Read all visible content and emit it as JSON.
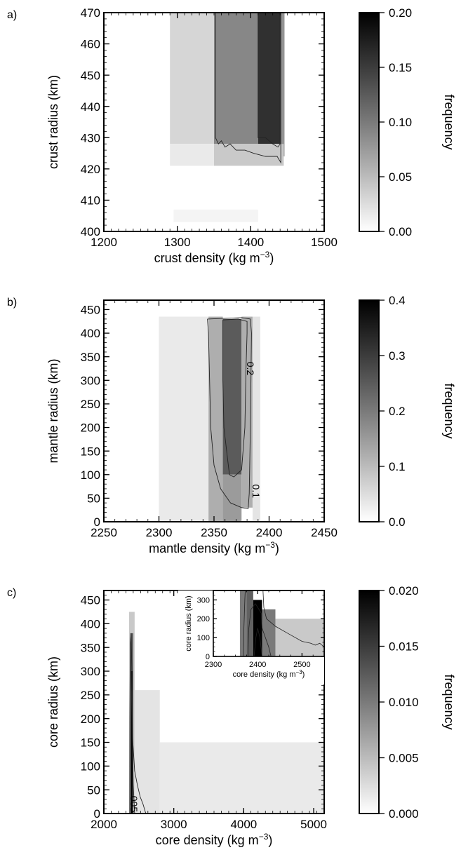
{
  "chart_data": [
    {
      "panel_label": "a)",
      "type": "heatmap",
      "xlabel_main": "crust density (kg m",
      "xlabel_sup": "−3",
      "xlabel_end": ")",
      "ylabel": "crust radius (km)",
      "xlim": [
        1200,
        1500
      ],
      "ylim": [
        400,
        470
      ],
      "x_ticks": [
        "1200",
        "1300",
        "1400",
        "1500"
      ],
      "y_ticks": [
        "400",
        "410",
        "420",
        "430",
        "440",
        "450",
        "460",
        "470"
      ],
      "colorbar": {
        "label": "frequency",
        "range": [
          0.0,
          0.2
        ],
        "ticks": [
          "0.00",
          "0.05",
          "0.10",
          "0.15",
          "0.20"
        ]
      },
      "cells": [
        {
          "x": [
            1290,
            1350
          ],
          "y": [
            428,
            470
          ],
          "value": 0.03
        },
        {
          "x": [
            1350,
            1410
          ],
          "y": [
            428,
            470
          ],
          "value": 0.09
        },
        {
          "x": [
            1410,
            1440
          ],
          "y": [
            428,
            470
          ],
          "value": 0.16
        },
        {
          "x": [
            1440,
            1446
          ],
          "y": [
            424,
            470
          ],
          "value": 0.08
        },
        {
          "x": [
            1290,
            1350
          ],
          "y": [
            421,
            428
          ],
          "value": 0.015
        },
        {
          "x": [
            1350,
            1445
          ],
          "y": [
            421,
            428
          ],
          "value": 0.04
        },
        {
          "x": [
            1295,
            1410
          ],
          "y": [
            403,
            407
          ],
          "value": 0.008
        }
      ],
      "contours": [
        {
          "points": [
            [
              1352,
              470
            ],
            [
              1352,
              430
            ],
            [
              1356,
              428
            ],
            [
              1360,
              429
            ],
            [
              1365,
              427
            ],
            [
              1372,
              428
            ],
            [
              1380,
              426
            ],
            [
              1392,
              426
            ],
            [
              1404,
              425
            ],
            [
              1420,
              424
            ],
            [
              1436,
              424
            ],
            [
              1441,
              422
            ],
            [
              1441,
              470
            ]
          ]
        },
        {
          "points": [
            [
              1410,
              470
            ],
            [
              1410,
              430
            ],
            [
              1420,
              430
            ],
            [
              1430,
              428
            ],
            [
              1437,
              427
            ],
            [
              1440,
              428
            ],
            [
              1440,
              470
            ]
          ]
        }
      ],
      "contour_labels": []
    },
    {
      "panel_label": "b)",
      "type": "heatmap",
      "xlabel_main": "mantle density (kg m",
      "xlabel_sup": "−3",
      "xlabel_end": ")",
      "ylabel": "mantle radius (km)",
      "xlim": [
        2250,
        2450
      ],
      "ylim": [
        0,
        470
      ],
      "x_ticks": [
        "2250",
        "2300",
        "2350",
        "2400",
        "2450"
      ],
      "y_ticks": [
        "0",
        "50",
        "100",
        "150",
        "200",
        "250",
        "300",
        "350",
        "400",
        "450"
      ],
      "colorbar": {
        "label": "frequency",
        "range": [
          0.0,
          0.4
        ],
        "ticks": [
          "0.0",
          "0.1",
          "0.2",
          "0.3",
          "0.4"
        ]
      },
      "cells": [
        {
          "x": [
            2300,
            2345
          ],
          "y": [
            0,
            435
          ],
          "value": 0.03
        },
        {
          "x": [
            2345,
            2358
          ],
          "y": [
            0,
            435
          ],
          "value": 0.12
        },
        {
          "x": [
            2358,
            2375
          ],
          "y": [
            100,
            430
          ],
          "value": 0.25
        },
        {
          "x": [
            2358,
            2375
          ],
          "y": [
            0,
            100
          ],
          "value": 0.15
        },
        {
          "x": [
            2375,
            2385
          ],
          "y": [
            30,
            435
          ],
          "value": 0.12
        },
        {
          "x": [
            2385,
            2392
          ],
          "y": [
            0,
            435
          ],
          "value": 0.04
        }
      ],
      "contours": [
        {
          "points": [
            [
              2344,
              430
            ],
            [
              2345,
              400
            ],
            [
              2346,
              300
            ],
            [
              2347,
              200
            ],
            [
              2350,
              120
            ],
            [
              2356,
              70
            ],
            [
              2365,
              40
            ],
            [
              2375,
              30
            ],
            [
              2381,
              28
            ],
            [
              2382,
              60
            ],
            [
              2383,
              200
            ],
            [
              2384,
              400
            ],
            [
              2383,
              430
            ],
            [
              2375,
              433
            ],
            [
              2344,
              430
            ]
          ]
        },
        {
          "points": [
            [
              2358,
              428
            ],
            [
              2358,
              300
            ],
            [
              2359,
              200
            ],
            [
              2362,
              140
            ],
            [
              2364,
              100
            ],
            [
              2368,
              95
            ],
            [
              2375,
              110
            ],
            [
              2378,
              200
            ],
            [
              2379,
              320
            ],
            [
              2380,
              400
            ],
            [
              2380,
              425
            ],
            [
              2372,
              430
            ],
            [
              2358,
              428
            ]
          ]
        }
      ],
      "contour_labels": [
        {
          "text": "0.2",
          "x": 2380,
          "y": 325
        },
        {
          "text": "0.1",
          "x": 2385,
          "y": 65
        }
      ]
    },
    {
      "panel_label": "c)",
      "type": "heatmap",
      "xlabel_main": "core density (kg m",
      "xlabel_sup": "−3",
      "xlabel_end": ")",
      "ylabel": "core radius (km)",
      "xlim": [
        2000,
        5150
      ],
      "ylim": [
        0,
        470
      ],
      "x_ticks": [
        "2000",
        "3000",
        "4000",
        "5000"
      ],
      "y_ticks": [
        "0",
        "50",
        "100",
        "150",
        "200",
        "250",
        "300",
        "350",
        "400",
        "450"
      ],
      "colorbar": {
        "label": "frequency",
        "range": [
          0.0,
          0.02
        ],
        "ticks": [
          "0.000",
          "0.005",
          "0.010",
          "0.015",
          "0.020"
        ]
      },
      "cells": [
        {
          "x": [
            2360,
            2440
          ],
          "y": [
            0,
            425
          ],
          "value": 0.004
        },
        {
          "x": [
            2380,
            2420
          ],
          "y": [
            0,
            380
          ],
          "value": 0.012
        },
        {
          "x": [
            2390,
            2410
          ],
          "y": [
            0,
            300
          ],
          "value": 0.02
        },
        {
          "x": [
            2440,
            2800
          ],
          "y": [
            0,
            260
          ],
          "value": 0.002
        },
        {
          "x": [
            2800,
            5150
          ],
          "y": [
            0,
            150
          ],
          "value": 0.0015
        }
      ],
      "contours": [
        {
          "points": [
            [
              2370,
              0
            ],
            [
              2372,
              200
            ],
            [
              2378,
              360
            ],
            [
              2390,
              380
            ],
            [
              2400,
              300
            ],
            [
              2410,
              160
            ],
            [
              2440,
              90
            ],
            [
              2480,
              60
            ],
            [
              2520,
              35
            ],
            [
              2560,
              20
            ],
            [
              2600,
              0
            ]
          ]
        },
        {
          "points": [
            [
              2385,
              0
            ],
            [
              2390,
              200
            ],
            [
              2400,
              300
            ],
            [
              2408,
              150
            ],
            [
              2420,
              60
            ],
            [
              2440,
              0
            ]
          ]
        }
      ],
      "contour_labels": [
        {
          "text": "005",
          "x": 2380,
          "y": 20
        }
      ],
      "inset": {
        "xlabel_main": "core density (kg m",
        "xlabel_sup": "−3",
        "xlabel_end": ")",
        "ylabel": "core radius (km)",
        "xlim": [
          2300,
          2550
        ],
        "ylim": [
          0,
          350
        ],
        "x_ticks": [
          "2300",
          "2400",
          "2500"
        ],
        "y_ticks": [
          "0",
          "100",
          "200",
          "300"
        ],
        "cells": [
          {
            "x": [
              2360,
              2375
            ],
            "y": [
              0,
              350
            ],
            "value": 0.01
          },
          {
            "x": [
              2375,
              2390
            ],
            "y": [
              0,
              350
            ],
            "value": 0.012
          },
          {
            "x": [
              2390,
              2410
            ],
            "y": [
              0,
              300
            ],
            "value": 0.02
          },
          {
            "x": [
              2410,
              2440
            ],
            "y": [
              0,
              250
            ],
            "value": 0.01
          },
          {
            "x": [
              2440,
              2550
            ],
            "y": [
              0,
              200
            ],
            "value": 0.004
          }
        ],
        "contours": [
          {
            "points": [
              [
                2368,
                0
              ],
              [
                2369,
                150
              ],
              [
                2371,
                300
              ],
              [
                2372,
                350
              ]
            ]
          },
          {
            "points": [
              [
                2412,
                350
              ],
              [
                2414,
                260
              ],
              [
                2420,
                200
              ],
              [
                2440,
                160
              ],
              [
                2470,
                120
              ],
              [
                2500,
                80
              ],
              [
                2520,
                70
              ],
              [
                2530,
                60
              ],
              [
                2540,
                70
              ],
              [
                2550,
                50
              ]
            ]
          },
          {
            "points": [
              [
                2378,
                0
              ],
              [
                2380,
                150
              ],
              [
                2385,
                250
              ],
              [
                2395,
                280
              ],
              [
                2408,
                230
              ],
              [
                2410,
                150
              ],
              [
                2425,
                50
              ],
              [
                2430,
                0
              ]
            ]
          },
          {
            "points": [
              [
                2392,
                0
              ],
              [
                2396,
                100
              ],
              [
                2400,
                150
              ],
              [
                2405,
                100
              ],
              [
                2410,
                0
              ]
            ]
          }
        ]
      }
    }
  ]
}
